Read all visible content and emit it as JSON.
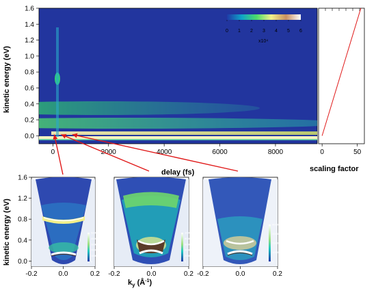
{
  "chart_data": [
    {
      "type": "heatmap",
      "name": "main",
      "xlabel": "delay (fs)",
      "ylabel": "kinetic energy (eV)",
      "xlim": [
        -500,
        9500
      ],
      "ylim": [
        -0.1,
        1.6
      ],
      "xticks": [
        "0",
        "2000",
        "4000",
        "6000",
        "8000"
      ],
      "yticks": [
        "0.0",
        "0.2",
        "0.4",
        "0.6",
        "0.8",
        "1.0",
        "1.2",
        "1.4",
        "1.6"
      ],
      "colorbar": {
        "ticks": [
          "0",
          "1",
          "2",
          "3",
          "4",
          "5",
          "6"
        ],
        "multiplier": "x10⁴"
      },
      "bands": [
        {
          "energy": 0.0,
          "label": ""
        },
        {
          "energy": 0.05,
          "label": ""
        },
        {
          "energy": 0.2,
          "label": ""
        },
        {
          "energy": 0.38,
          "label": ""
        },
        {
          "energy": 0.75,
          "label": ""
        }
      ],
      "arrows_from_delay": [
        50,
        300,
        700
      ]
    },
    {
      "type": "line",
      "name": "scaling",
      "xlabel": "scaling factor",
      "xticks": [
        "0",
        "50"
      ],
      "xlim": [
        -5,
        60
      ],
      "x": [
        0,
        55
      ],
      "y": [
        0.0,
        1.6
      ]
    },
    {
      "type": "heatmap",
      "name": "snapshots",
      "xlabel": "kᵧ (Å⁻¹)",
      "ylabel": "kinetic energy (eV)",
      "xlim": [
        -0.2,
        0.2
      ],
      "ylim": [
        -0.1,
        1.6
      ],
      "xticks": [
        "-0.2",
        "0.0",
        "0.2"
      ],
      "yticks": [
        "0.0",
        "0.4",
        "0.8",
        "1.2",
        "1.6"
      ],
      "panels": [
        {
          "colorbar_ticks": [
            "0",
            "100",
            "200",
            "300",
            "400",
            "500"
          ]
        },
        {
          "colorbar_ticks": [
            "0",
            "200",
            "400",
            "600",
            "800",
            "1000"
          ]
        },
        {
          "colorbar_ticks": [
            "0",
            "1000",
            "2000",
            "3000",
            "4000"
          ]
        }
      ]
    }
  ]
}
